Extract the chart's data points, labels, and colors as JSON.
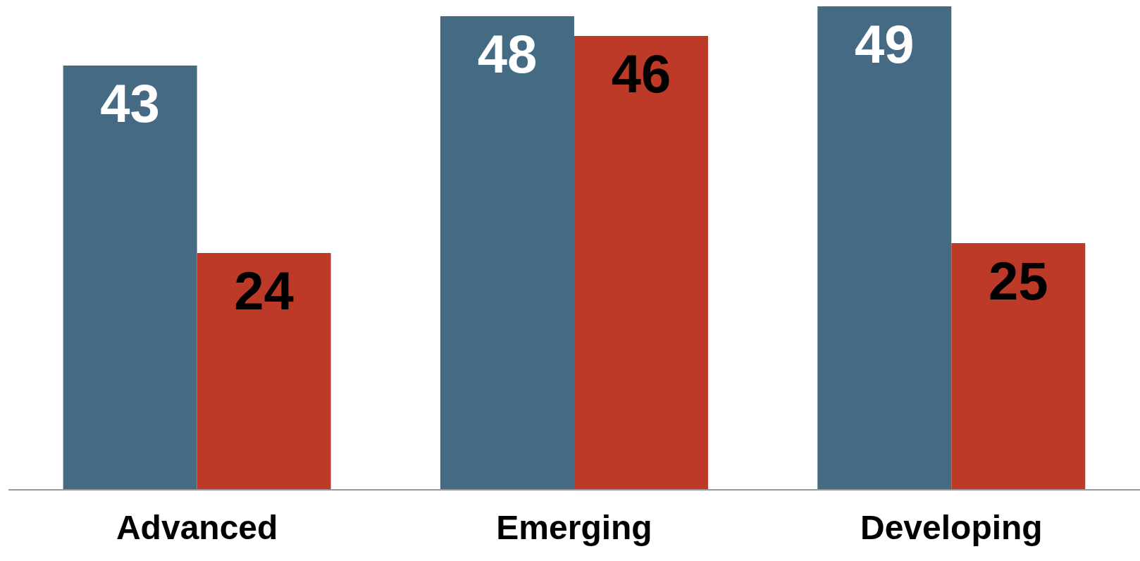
{
  "chart_data": {
    "type": "bar",
    "categories": [
      "Advanced",
      "Emerging",
      "Developing"
    ],
    "series": [
      {
        "color": "#456a84",
        "values": [
          43,
          48,
          49
        ]
      },
      {
        "color": "#bd3a28",
        "values": [
          24,
          46,
          25
        ]
      }
    ],
    "data_labels": true,
    "grid": false,
    "legend": false
  }
}
